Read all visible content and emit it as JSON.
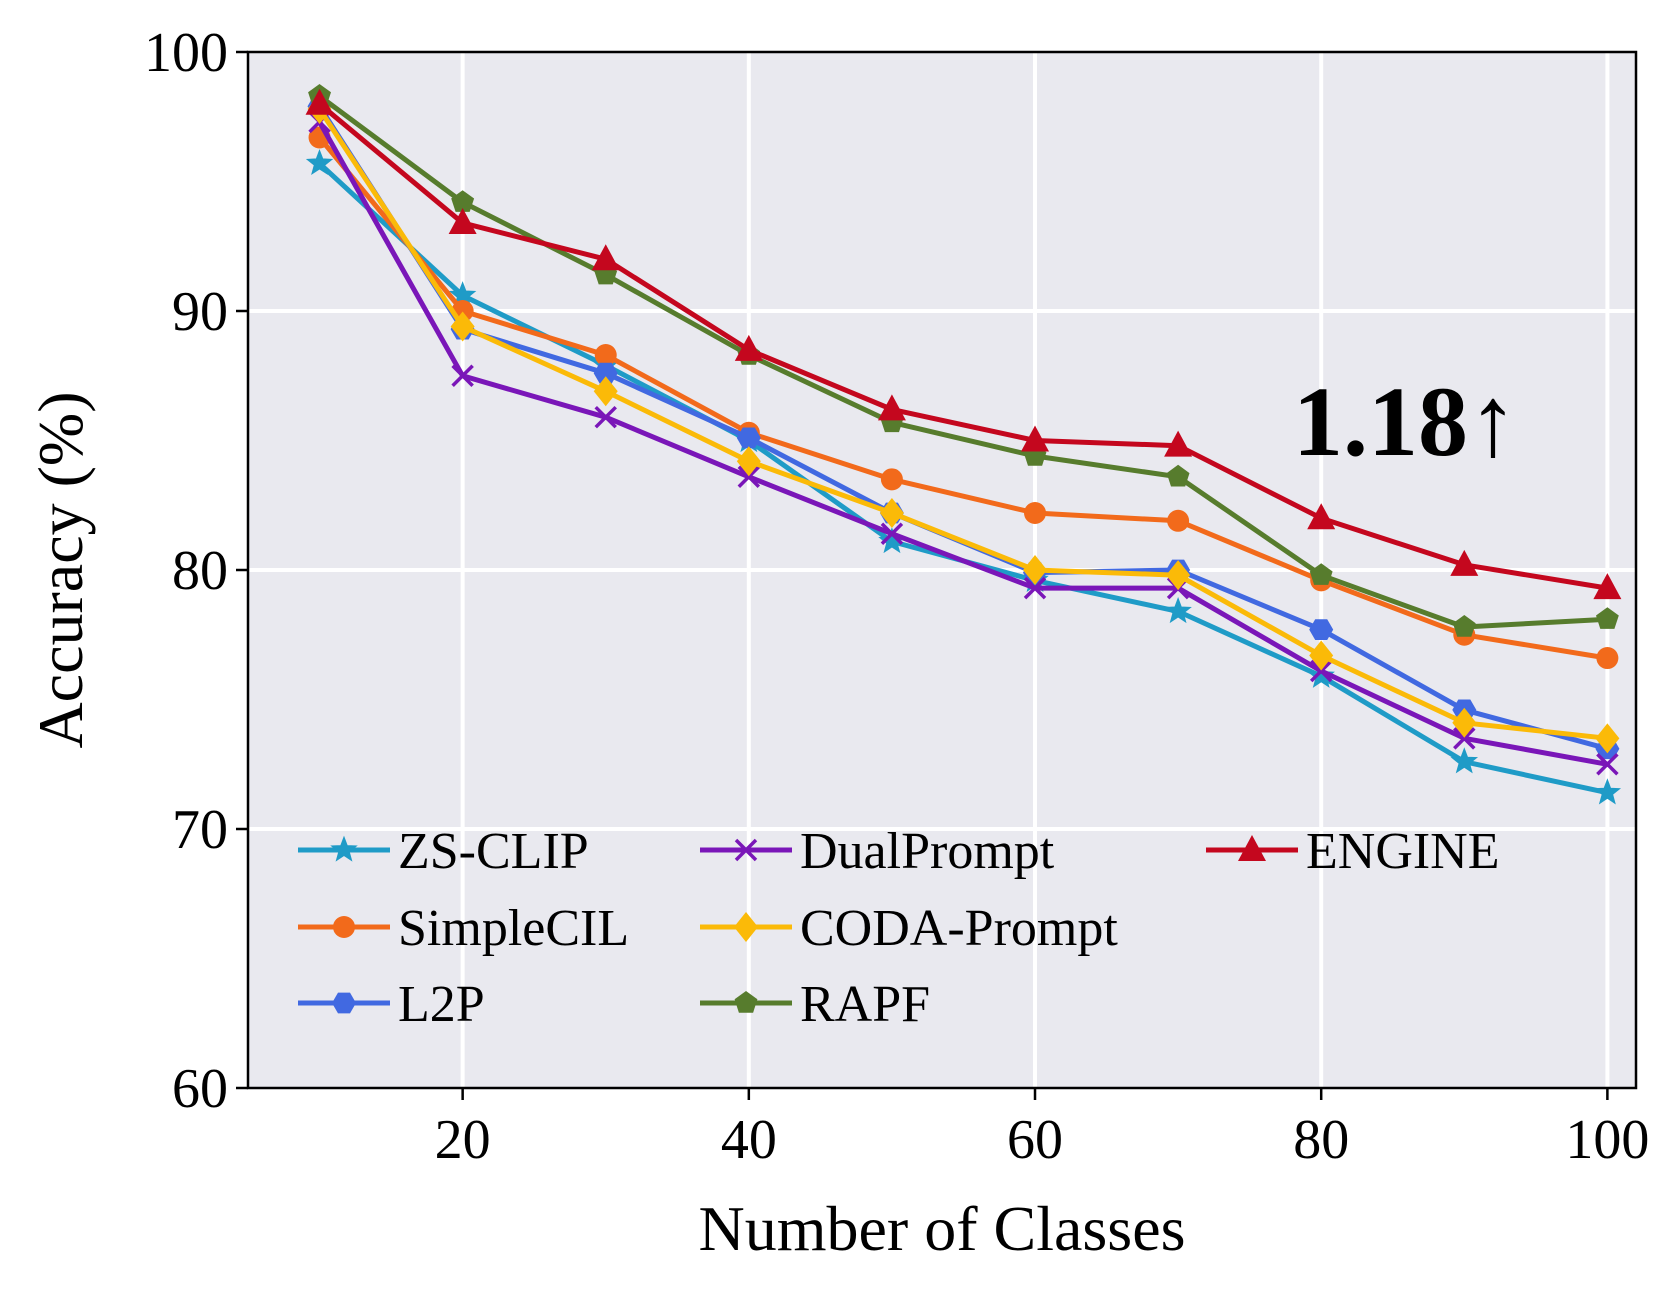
{
  "chart_data": {
    "type": "line",
    "title": "",
    "xlabel": "Number of Classes",
    "ylabel": "Accuracy (%)",
    "xlim": [
      5,
      102
    ],
    "ylim": [
      60,
      100
    ],
    "xticks": [
      20,
      40,
      60,
      80,
      100
    ],
    "yticks": [
      60,
      70,
      80,
      90,
      100
    ],
    "grid": true,
    "legend_position": "lower-left",
    "annotation": "1.18↑",
    "x": [
      10,
      20,
      30,
      40,
      50,
      60,
      70,
      80,
      90,
      100
    ],
    "series": [
      {
        "name": "ZS-CLIP",
        "color": "#1f9bc7",
        "marker": "star",
        "values": [
          95.7,
          90.6,
          87.9,
          85.0,
          81.1,
          79.6,
          78.4,
          75.9,
          72.6,
          71.4
        ]
      },
      {
        "name": "SimpleCIL",
        "color": "#f26a1b",
        "marker": "circle",
        "values": [
          96.7,
          90.0,
          88.3,
          85.3,
          83.5,
          82.2,
          81.9,
          79.6,
          77.5,
          76.6
        ]
      },
      {
        "name": "L2P",
        "color": "#4169e1",
        "marker": "hexagon",
        "values": [
          97.9,
          89.3,
          87.6,
          85.1,
          82.2,
          79.9,
          80.0,
          77.7,
          74.6,
          73.1
        ]
      },
      {
        "name": "DualPrompt",
        "color": "#7a16b8",
        "marker": "x",
        "values": [
          97.3,
          87.5,
          85.9,
          83.6,
          81.4,
          79.3,
          79.3,
          76.1,
          73.5,
          72.5
        ]
      },
      {
        "name": "CODA-Prompt",
        "color": "#fbba08",
        "marker": "diamond",
        "values": [
          97.8,
          89.4,
          86.9,
          84.2,
          82.2,
          80.0,
          79.8,
          76.7,
          74.1,
          73.5
        ]
      },
      {
        "name": "RAPF",
        "color": "#577c2d",
        "marker": "pentagon",
        "values": [
          98.3,
          94.2,
          91.4,
          88.3,
          85.7,
          84.4,
          83.6,
          79.8,
          77.8,
          78.1
        ]
      },
      {
        "name": "ENGINE",
        "color": "#c4071e",
        "marker": "triangle",
        "values": [
          98.0,
          93.4,
          92.0,
          88.5,
          86.2,
          85.0,
          84.8,
          82.0,
          80.2,
          79.3
        ]
      }
    ]
  }
}
